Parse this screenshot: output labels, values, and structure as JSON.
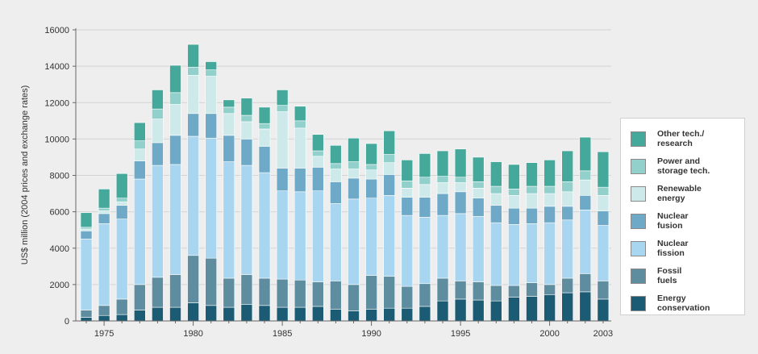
{
  "colors": {
    "background": "#eeeeee",
    "axis": "#666666",
    "grid": "#d4d4d4"
  },
  "chart_data": {
    "type": "bar",
    "stacked": true,
    "title": "",
    "xlabel": "",
    "ylabel": "US$ million (2004 prices and exchange rates)",
    "ylim": [
      0,
      16000
    ],
    "yticks": [
      0,
      2000,
      4000,
      6000,
      8000,
      10000,
      12000,
      14000,
      16000
    ],
    "ytick_labels": [
      "0",
      "2000",
      "4000",
      "6000",
      "8000",
      "10000",
      "12000",
      "14000",
      "16000"
    ],
    "xtick_labels": [
      "1975",
      "1980",
      "1985",
      "1990",
      "1995",
      "2000",
      "2003"
    ],
    "xtick_years": [
      1975,
      1980,
      1985,
      1990,
      1995,
      2000,
      2003
    ],
    "grid": "horizontal",
    "legend_position": "right",
    "categories": [
      1974,
      1975,
      1976,
      1977,
      1978,
      1979,
      1980,
      1981,
      1982,
      1983,
      1984,
      1985,
      1986,
      1987,
      1988,
      1989,
      1990,
      1991,
      1992,
      1993,
      1994,
      1995,
      1996,
      1997,
      1998,
      1999,
      2000,
      2001,
      2002,
      2003
    ],
    "series": [
      {
        "name": "Energy\nconservation",
        "color": "#1b5b73",
        "values": [
          200,
          300,
          350,
          600,
          750,
          750,
          1000,
          850,
          750,
          900,
          850,
          750,
          750,
          800,
          650,
          550,
          650,
          700,
          700,
          800,
          1100,
          1200,
          1150,
          1100,
          1300,
          1350,
          1450,
          1550,
          1600,
          1200
        ]
      },
      {
        "name": "Fossil\nfuels",
        "color": "#5e8da0",
        "values": [
          400,
          550,
          850,
          1400,
          1650,
          1800,
          2600,
          2600,
          1600,
          1650,
          1500,
          1550,
          1500,
          1350,
          1550,
          1450,
          1850,
          1750,
          1200,
          1250,
          1250,
          1000,
          1000,
          850,
          650,
          750,
          550,
          800,
          1000,
          1000
        ]
      },
      {
        "name": "Nuclear\nfission",
        "color": "#a8d6f0",
        "values": [
          3900,
          4500,
          4400,
          5800,
          6150,
          6050,
          6550,
          6600,
          6400,
          6000,
          5800,
          4850,
          4850,
          5000,
          4250,
          4700,
          4250,
          4450,
          3900,
          3650,
          3450,
          3700,
          3600,
          3450,
          3350,
          3250,
          3400,
          3200,
          3500,
          3050
        ]
      },
      {
        "name": "Nuclear\nfusion",
        "color": "#6ea9c8",
        "values": [
          450,
          550,
          750,
          1000,
          1250,
          1600,
          1250,
          1350,
          1450,
          1450,
          1450,
          1250,
          1300,
          1300,
          1200,
          1150,
          1050,
          1150,
          1000,
          1100,
          1200,
          1200,
          1000,
          950,
          900,
          850,
          900,
          750,
          800,
          800
        ]
      },
      {
        "name": "Renewable\nenergy",
        "color": "#cde9ea",
        "values": [
          100,
          150,
          200,
          650,
          1300,
          1700,
          2100,
          2050,
          1200,
          950,
          950,
          3100,
          2200,
          600,
          700,
          500,
          500,
          650,
          500,
          700,
          600,
          500,
          550,
          650,
          700,
          800,
          700,
          800,
          850,
          850
        ]
      },
      {
        "name": "Power and\nstorage tech.",
        "color": "#92d0cb",
        "values": [
          100,
          150,
          200,
          450,
          550,
          650,
          450,
          350,
          350,
          350,
          300,
          350,
          400,
          300,
          300,
          400,
          300,
          450,
          400,
          400,
          350,
          300,
          350,
          400,
          350,
          400,
          400,
          550,
          500,
          450
        ]
      },
      {
        "name": "Other tech./\nresearch",
        "color": "#44a89a",
        "values": [
          800,
          1050,
          1350,
          1000,
          1050,
          1500,
          1250,
          450,
          400,
          950,
          900,
          850,
          800,
          900,
          1000,
          1300,
          1150,
          1300,
          1150,
          1300,
          1400,
          1550,
          1350,
          1350,
          1350,
          1300,
          1450,
          1700,
          1850,
          1950
        ]
      }
    ]
  }
}
